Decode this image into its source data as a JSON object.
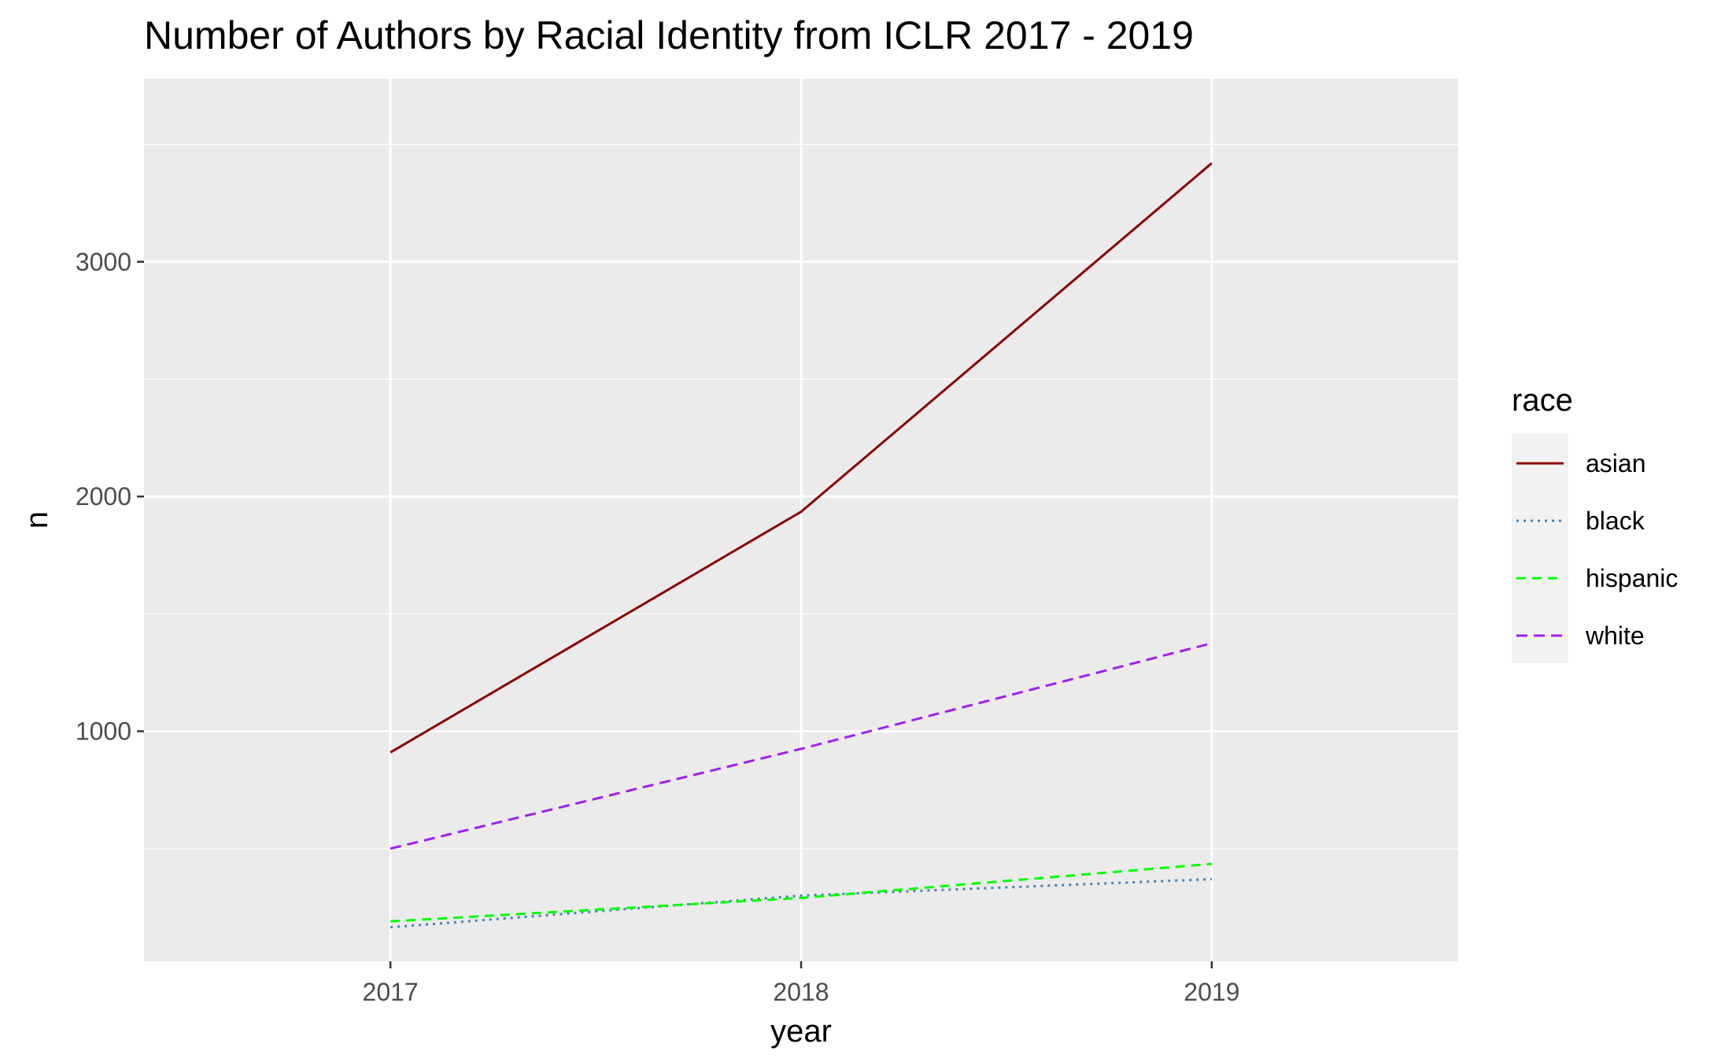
{
  "chart_data": {
    "type": "line",
    "title": "Number of Authors by Racial Identity from ICLR 2017 - 2019",
    "xlabel": "year",
    "ylabel": "n",
    "x": [
      2017,
      2018,
      2019
    ],
    "x_tick_labels": [
      "2017",
      "2018",
      "2019"
    ],
    "y_ticks": [
      1000,
      2000,
      3000
    ],
    "y_tick_labels": [
      "1000",
      "2000",
      "3000"
    ],
    "xlim": [
      2016.4,
      2019.6
    ],
    "ylim": [
      20,
      3780
    ],
    "grid": true,
    "legend": {
      "title": "race",
      "position": "right",
      "entries": [
        "asian",
        "black",
        "hispanic",
        "white"
      ]
    },
    "series": [
      {
        "name": "asian",
        "values": [
          910,
          1935,
          3420
        ],
        "color": "#8b0000",
        "dash": "solid"
      },
      {
        "name": "black",
        "values": [
          165,
          300,
          370
        ],
        "color": "#4682b4",
        "dash": "dotted"
      },
      {
        "name": "hispanic",
        "values": [
          190,
          290,
          435
        ],
        "color": "#00ff00",
        "dash": "dashed"
      },
      {
        "name": "white",
        "values": [
          500,
          925,
          1375
        ],
        "color": "#a020f0",
        "dash": "longdash"
      }
    ]
  }
}
